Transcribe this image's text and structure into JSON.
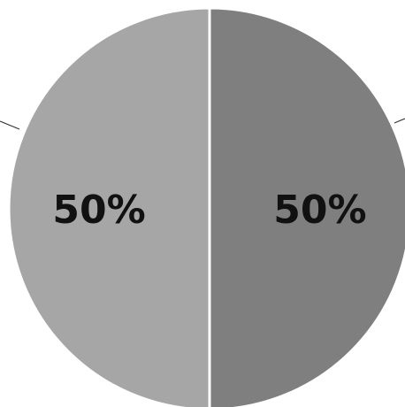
{
  "chart_data": {
    "type": "pie",
    "slices": [
      {
        "label": "50%",
        "value": 50,
        "color": "#7f7f7f"
      },
      {
        "label": "50%",
        "value": 50,
        "color": "#a6a6a6"
      }
    ],
    "start_angle_deg": 0,
    "direction": "clockwise",
    "separator_color": "#ffffff",
    "leader_line_color": "#333333",
    "legend": "none"
  }
}
